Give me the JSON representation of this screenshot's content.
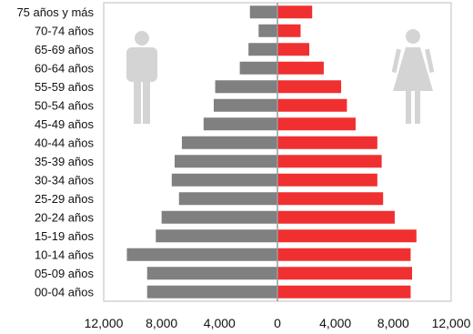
{
  "chart_data": {
    "type": "bar",
    "orientation": "horizontal",
    "layout": "population-pyramid",
    "categories": [
      "75 años y más",
      "70-74 años",
      "65-69 años",
      "60-64 años",
      "55-59 años",
      "50-54 años",
      "45-49 años",
      "40-44 años",
      "35-39 años",
      "30-34 años",
      "25-29 años",
      "20-24 años",
      "15-19 años",
      "10-14 años",
      "05-09 años",
      "00-04 años"
    ],
    "series": [
      {
        "values": [
          1900,
          1300,
          2000,
          2600,
          4300,
          4400,
          5100,
          6600,
          7100,
          7300,
          6800,
          8000,
          8400,
          10400,
          9000,
          9000
        ],
        "color": "#808080",
        "side": "left"
      },
      {
        "values": [
          2400,
          1600,
          2200,
          3200,
          4400,
          4800,
          5400,
          6900,
          7200,
          6900,
          7300,
          8100,
          9600,
          9200,
          9300,
          9200
        ],
        "color": "#f03030",
        "side": "right"
      }
    ],
    "xlim": [
      -12000,
      12000
    ],
    "xticks": [
      "12,000",
      "8,000",
      "4,000",
      "0",
      "4,000",
      "8,000",
      "12,000"
    ],
    "xtick_values": [
      -12000,
      -8000,
      -4000,
      0,
      4000,
      8000,
      12000
    ],
    "grid": false,
    "axis_color": "#bdbdbd",
    "icons": {
      "left": "male-figure-icon",
      "right": "female-figure-icon",
      "color": "#d4d4d4"
    }
  }
}
